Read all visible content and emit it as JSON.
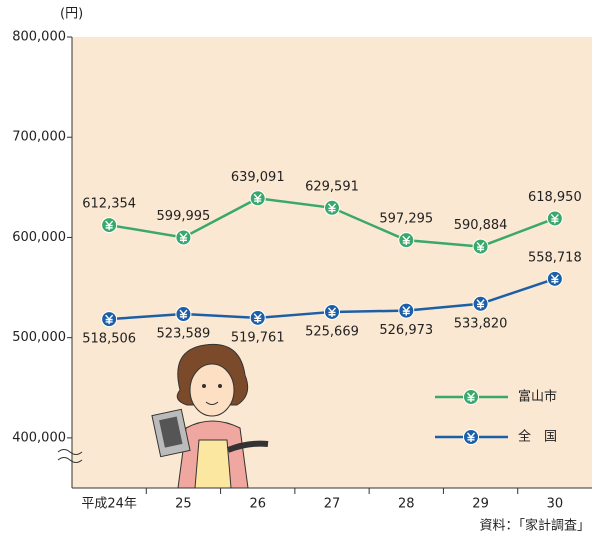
{
  "chart_data": {
    "type": "line",
    "y_unit": "(円)",
    "source": "資料：「家計調査」",
    "categories": [
      "平成24年",
      "25",
      "26",
      "27",
      "28",
      "29",
      "30"
    ],
    "series": [
      {
        "name": "富山市",
        "color": "#3aa86a",
        "values": [
          612354,
          599995,
          639091,
          629591,
          597295,
          590884,
          618950
        ],
        "value_labels": [
          "612,354",
          "599,995",
          "639,091",
          "629,591",
          "597,295",
          "590,884",
          "618,950"
        ]
      },
      {
        "name": "全　国",
        "color": "#1d5fa6",
        "values": [
          518506,
          523589,
          519761,
          525669,
          526973,
          533820,
          558718
        ],
        "value_labels": [
          "518,506",
          "523,589",
          "519,761",
          "525,669",
          "526,973",
          "533,820",
          "558,718"
        ]
      }
    ],
    "ylim": [
      350000,
      800000
    ],
    "yticks": [
      {
        "value": 400000,
        "label": "400,000"
      },
      {
        "value": 500000,
        "label": "500,000"
      },
      {
        "value": 600000,
        "label": "600,000"
      },
      {
        "value": 700000,
        "label": "700,000"
      },
      {
        "value": 800000,
        "label": "800,000"
      }
    ],
    "background": "#fbe8d2"
  }
}
